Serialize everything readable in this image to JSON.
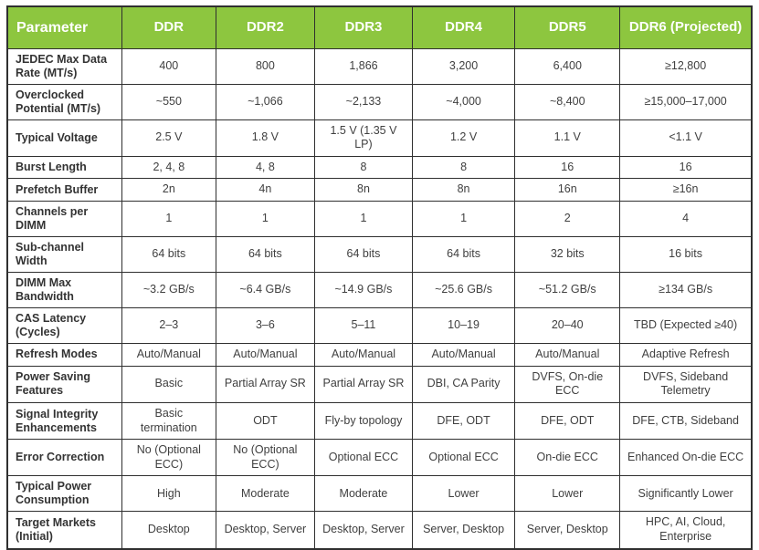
{
  "colors": {
    "header_bg": "#8DC63F",
    "header_text": "#FFFFFF",
    "border": "#2F2F2F",
    "param_text": "#333333",
    "cell_text": "#404040"
  },
  "chart_data": {
    "type": "table",
    "columns": [
      "Parameter",
      "DDR",
      "DDR2",
      "DDR3",
      "DDR4",
      "DDR5",
      "DDR6 (Projected)"
    ],
    "rows": [
      [
        "JEDEC Max Data Rate (MT/s)",
        "400",
        "800",
        "1,866",
        "3,200",
        "6,400",
        "≥12,800"
      ],
      [
        "Overclocked Potential (MT/s)",
        "~550",
        "~1,066",
        "~2,133",
        "~4,000",
        "~8,400",
        "≥15,000–17,000"
      ],
      [
        "Typical Voltage",
        "2.5 V",
        "1.8 V",
        "1.5 V (1.35 V LP)",
        "1.2 V",
        "1.1 V",
        "<1.1 V"
      ],
      [
        "Burst Length",
        "2, 4, 8",
        "4, 8",
        "8",
        "8",
        "16",
        "16"
      ],
      [
        "Prefetch Buffer",
        "2n",
        "4n",
        "8n",
        "8n",
        "16n",
        "≥16n"
      ],
      [
        "Channels per DIMM",
        "1",
        "1",
        "1",
        "1",
        "2",
        "4"
      ],
      [
        "Sub-channel Width",
        "64 bits",
        "64 bits",
        "64 bits",
        "64 bits",
        "32 bits",
        "16 bits"
      ],
      [
        "DIMM Max Bandwidth",
        "~3.2 GB/s",
        "~6.4 GB/s",
        "~14.9 GB/s",
        "~25.6 GB/s",
        "~51.2 GB/s",
        "≥134 GB/s"
      ],
      [
        "CAS Latency (Cycles)",
        "2–3",
        "3–6",
        "5–11",
        "10–19",
        "20–40",
        "TBD (Expected ≥40)"
      ],
      [
        "Refresh Modes",
        "Auto/Manual",
        "Auto/Manual",
        "Auto/Manual",
        "Auto/Manual",
        "Auto/Manual",
        "Adaptive Refresh"
      ],
      [
        "Power Saving Features",
        "Basic",
        "Partial Array SR",
        "Partial Array SR",
        "DBI, CA Parity",
        "DVFS, On-die ECC",
        "DVFS, Sideband Telemetry"
      ],
      [
        "Signal Integrity Enhancements",
        "Basic termination",
        "ODT",
        "Fly-by topology",
        "DFE, ODT",
        "DFE, ODT",
        "DFE, CTB, Sideband"
      ],
      [
        "Error Correction",
        "No (Optional ECC)",
        "No (Optional ECC)",
        "Optional ECC",
        "Optional ECC",
        "On-die ECC",
        "Enhanced On-die ECC"
      ],
      [
        "Typical Power Consumption",
        "High",
        "Moderate",
        "Moderate",
        "Lower",
        "Lower",
        "Significantly Lower"
      ],
      [
        "Target Markets (Initial)",
        "Desktop",
        "Desktop, Server",
        "Desktop, Server",
        "Server, Desktop",
        "Server, Desktop",
        "HPC, AI, Cloud, Enterprise"
      ]
    ]
  }
}
